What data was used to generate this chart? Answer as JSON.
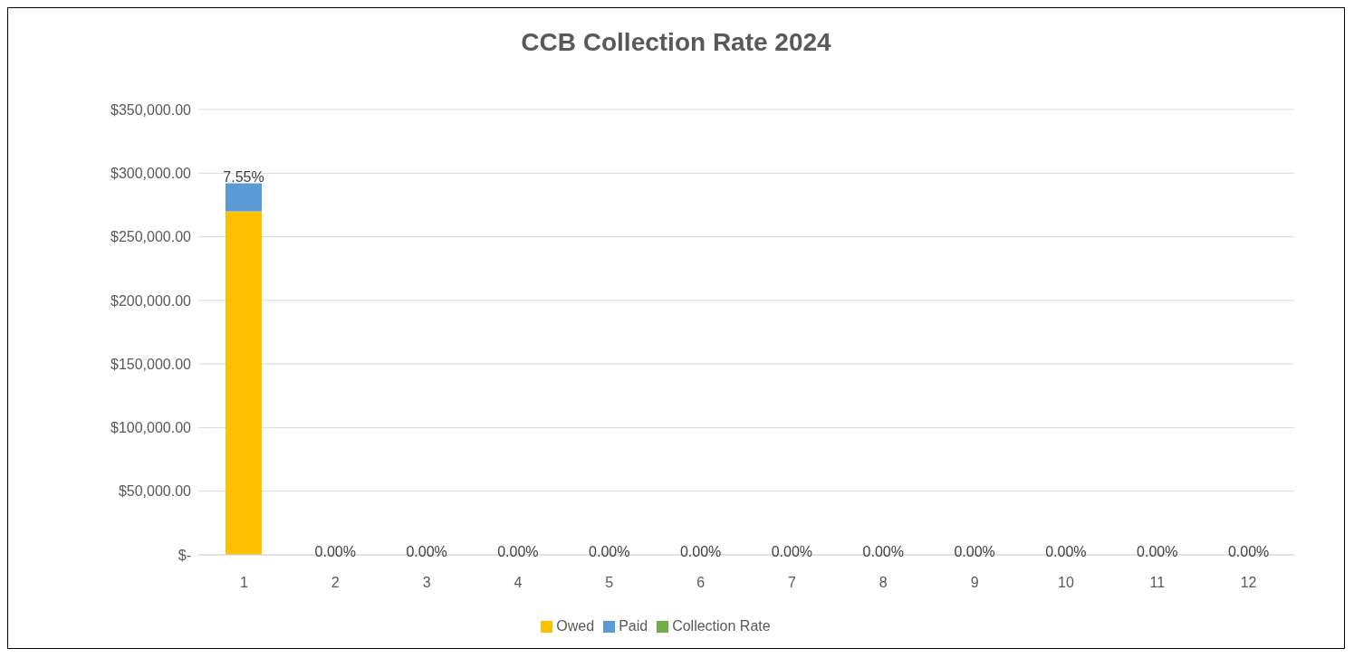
{
  "chart_data": {
    "type": "bar",
    "title": "CCB Collection Rate 2024",
    "categories": [
      "1",
      "2",
      "3",
      "4",
      "5",
      "6",
      "7",
      "8",
      "9",
      "10",
      "11",
      "12"
    ],
    "stacked": true,
    "series": [
      {
        "name": "Owed",
        "color": "#ffc000",
        "values": [
          270000,
          0,
          0,
          0,
          0,
          0,
          0,
          0,
          0,
          0,
          0,
          0
        ]
      },
      {
        "name": "Paid",
        "color": "#5b9bd5",
        "values": [
          22000,
          0,
          0,
          0,
          0,
          0,
          0,
          0,
          0,
          0,
          0,
          0
        ]
      },
      {
        "name": "Collection Rate",
        "color": "#70ad47",
        "values": [
          0.0755,
          0,
          0,
          0,
          0,
          0,
          0,
          0,
          0,
          0,
          0,
          0
        ],
        "value_labels": [
          "7.55%",
          "0.00%",
          "0.00%",
          "0.00%",
          "0.00%",
          "0.00%",
          "0.00%",
          "0.00%",
          "0.00%",
          "0.00%",
          "0.00%",
          "0.00%"
        ]
      }
    ],
    "ylim": [
      0,
      350000
    ],
    "yticks": [
      {
        "value": 0,
        "label": "$-"
      },
      {
        "value": 50000,
        "label": "$50,000.00"
      },
      {
        "value": 100000,
        "label": "$100,000.00"
      },
      {
        "value": 150000,
        "label": "$150,000.00"
      },
      {
        "value": 200000,
        "label": "$200,000.00"
      },
      {
        "value": 250000,
        "label": "$250,000.00"
      },
      {
        "value": 300000,
        "label": "$300,000.00"
      },
      {
        "value": 350000,
        "label": "$350,000.00"
      }
    ],
    "grid": "y",
    "legend": "bottom"
  }
}
